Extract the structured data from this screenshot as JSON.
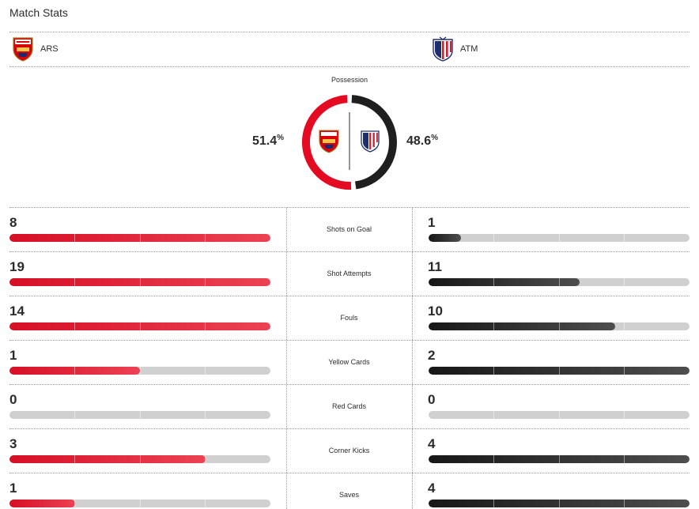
{
  "title": "Match Stats",
  "home": {
    "abbr": "ARS",
    "color": "#e30a22",
    "logo_icon": "arsenal-crest-icon",
    "possession_value": "51.4",
    "possession_share": 51.4
  },
  "away": {
    "abbr": "ATM",
    "color": "#1f1f1f",
    "logo_icon": "atletico-madrid-crest-icon",
    "possession_value": "48.6",
    "possession_share": 48.6
  },
  "possession_label": "Possession",
  "percent_sign": "%",
  "stats": [
    {
      "label": "Shots on Goal",
      "home": "8",
      "away": "1",
      "home_share": 1.0,
      "away_share": 0.125
    },
    {
      "label": "Shot Attempts",
      "home": "19",
      "away": "11",
      "home_share": 1.0,
      "away_share": 0.5789
    },
    {
      "label": "Fouls",
      "home": "14",
      "away": "10",
      "home_share": 1.0,
      "away_share": 0.7143
    },
    {
      "label": "Yellow Cards",
      "home": "1",
      "away": "2",
      "home_share": 0.5,
      "away_share": 1.0
    },
    {
      "label": "Red Cards",
      "home": "0",
      "away": "0",
      "home_share": 0.0,
      "away_share": 0.0
    },
    {
      "label": "Corner Kicks",
      "home": "3",
      "away": "4",
      "home_share": 0.75,
      "away_share": 1.0
    },
    {
      "label": "Saves",
      "home": "1",
      "away": "4",
      "home_share": 0.25,
      "away_share": 1.0
    }
  ]
}
